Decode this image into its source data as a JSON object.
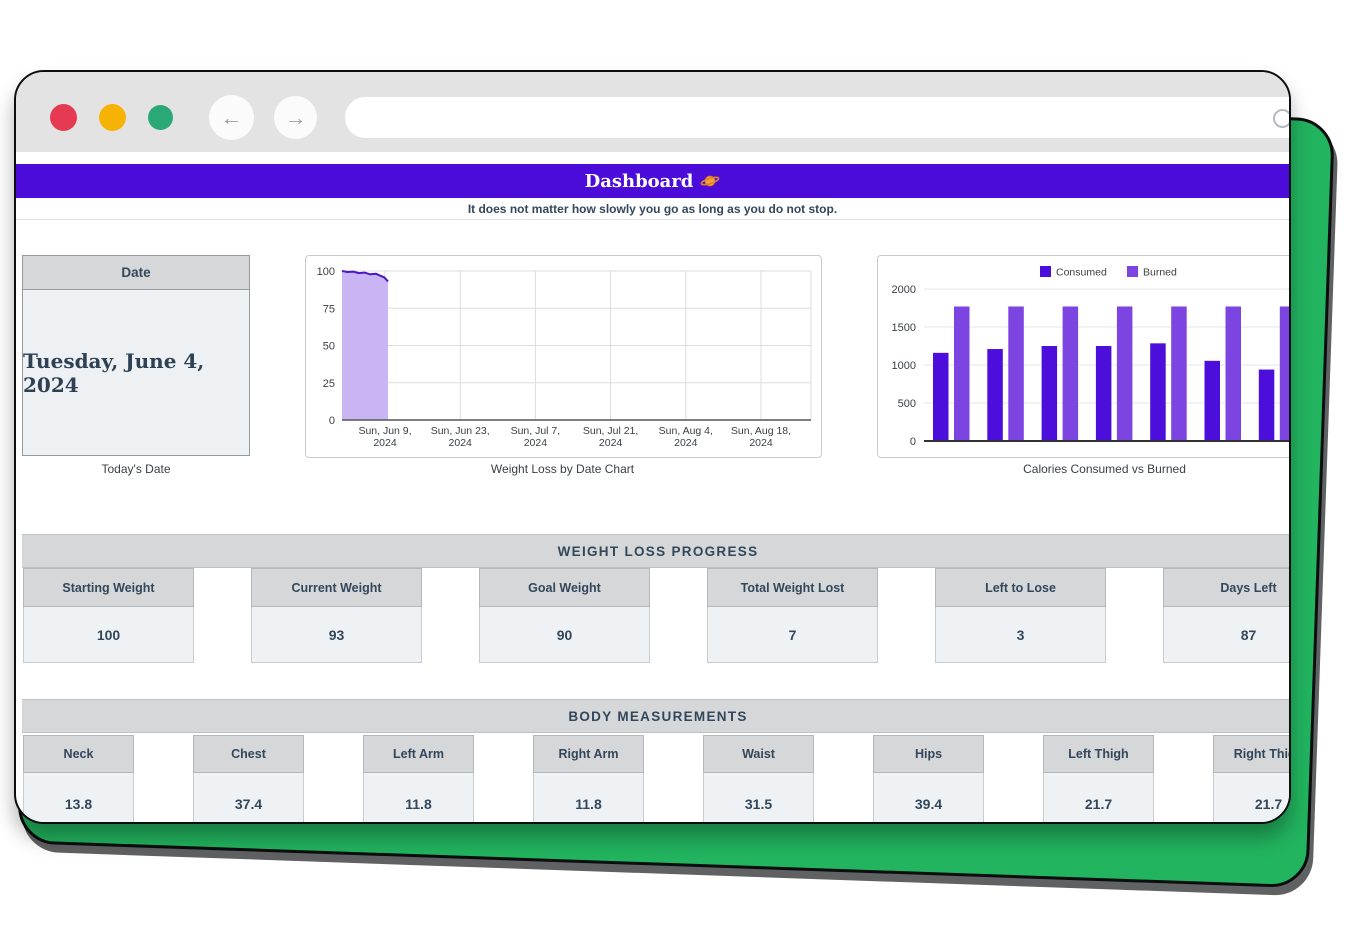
{
  "colors": {
    "purple_banner": "#4b0bd9",
    "green_backdrop": "#22b45f",
    "consumed_bar": "#4c0edb",
    "burned_bar": "#7c45e2",
    "weight_line": "#4b16c6",
    "weight_fill": "#c9b5f4",
    "text_dark": "#33475b",
    "traffic_red": "#e63a52",
    "traffic_yellow": "#f7b305",
    "traffic_green": "#2aa876"
  },
  "icons": {
    "back": "←",
    "forward": "→",
    "search": "magnifier-ring",
    "title_planet": "saturn"
  },
  "header": {
    "title": "Dashboard",
    "subtitle": "It does not matter how slowly you go as long as you do not stop."
  },
  "date_card": {
    "header": "Date",
    "value": "Tuesday, June 4, 2024",
    "caption": "Today's Date"
  },
  "chart_data": [
    {
      "type": "area",
      "title": "Weight Loss by Date Chart",
      "ylabel": "",
      "xlabel": "",
      "ylim": [
        0,
        100
      ],
      "yticks": [
        0,
        25,
        50,
        75,
        100
      ],
      "x_tick_labels": [
        [
          "Sun, Jun 9,",
          "2024"
        ],
        [
          "Sun, Jun 23,",
          "2024"
        ],
        [
          "Sun, Jul 7,",
          "2024"
        ],
        [
          "Sun, Jul 21,",
          "2024"
        ],
        [
          "Sun, Aug 4,",
          "2024"
        ],
        [
          "Sun, Aug 18,",
          "2024"
        ]
      ],
      "grid": true,
      "series": [
        {
          "name": "Weight",
          "points": [
            [
              0,
              100
            ],
            [
              0.012,
              99.3
            ],
            [
              0.024,
              99.6
            ],
            [
              0.036,
              98.6
            ],
            [
              0.048,
              98.9
            ],
            [
              0.06,
              97.8
            ],
            [
              0.072,
              98.2
            ],
            [
              0.082,
              96.8
            ],
            [
              0.09,
              95.8
            ],
            [
              0.098,
              93
            ]
          ],
          "note": "weight drops from 100 to 93 over first ~10% of date axis (Jun 1 - Jun 4)"
        }
      ]
    },
    {
      "type": "bar",
      "title": "Calories Consumed vs Burned",
      "ylim": [
        0,
        2000
      ],
      "yticks": [
        0,
        500,
        1000,
        1500,
        2000
      ],
      "legend": [
        "Consumed",
        "Burned"
      ],
      "legend_position": "top",
      "grid": true,
      "categories": [
        "",
        "",
        "",
        "",
        "",
        "",
        ""
      ],
      "series": [
        {
          "name": "Consumed",
          "color": "#4c0edb",
          "values": [
            1160,
            1210,
            1250,
            1250,
            1285,
            1055,
            940
          ]
        },
        {
          "name": "Burned",
          "color": "#7c45e2",
          "values": [
            1770,
            1770,
            1770,
            1770,
            1770,
            1770,
            1770
          ]
        }
      ]
    }
  ],
  "weight_progress": {
    "title": "WEIGHT LOSS PROGRESS",
    "cards": [
      {
        "label": "Starting Weight",
        "value": "100"
      },
      {
        "label": "Current Weight",
        "value": "93"
      },
      {
        "label": "Goal Weight",
        "value": "90"
      },
      {
        "label": "Total Weight Lost",
        "value": "7"
      },
      {
        "label": "Left to Lose",
        "value": "3"
      },
      {
        "label": "Days Left",
        "value": "87"
      }
    ]
  },
  "body_measurements": {
    "title": "BODY MEASUREMENTS",
    "cards": [
      {
        "label": "Neck",
        "value": "13.8"
      },
      {
        "label": "Chest",
        "value": "37.4"
      },
      {
        "label": "Left Arm",
        "value": "11.8"
      },
      {
        "label": "Right Arm",
        "value": "11.8"
      },
      {
        "label": "Waist",
        "value": "31.5"
      },
      {
        "label": "Hips",
        "value": "39.4"
      },
      {
        "label": "Left Thigh",
        "value": "21.7"
      },
      {
        "label": "Right Thigh",
        "value": "21.7"
      }
    ]
  }
}
